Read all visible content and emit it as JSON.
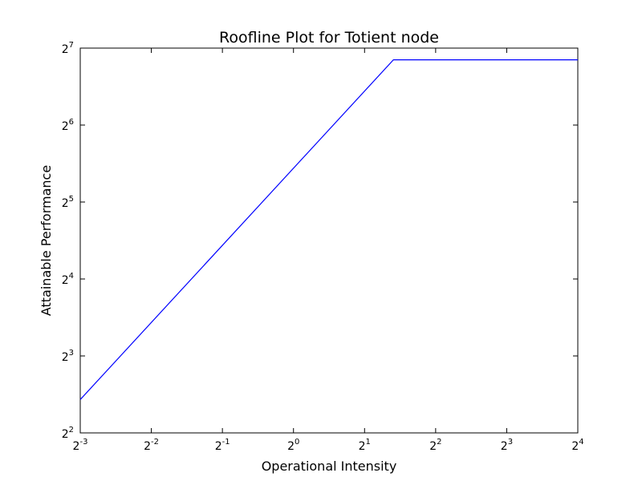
{
  "chart_data": {
    "type": "line",
    "title": "Roofline Plot for Totient node",
    "xlabel": "Operational Intensity",
    "ylabel": "Attainable Performance",
    "xscale": "log2",
    "yscale": "log2",
    "xlim": [
      0.125,
      16
    ],
    "ylim": [
      4,
      128
    ],
    "x_ticks": [
      {
        "base": "2",
        "exp": "-3",
        "value": 0.125
      },
      {
        "base": "2",
        "exp": "-2",
        "value": 0.25
      },
      {
        "base": "2",
        "exp": "-1",
        "value": 0.5
      },
      {
        "base": "2",
        "exp": "0",
        "value": 1
      },
      {
        "base": "2",
        "exp": "1",
        "value": 2
      },
      {
        "base": "2",
        "exp": "2",
        "value": 4
      },
      {
        "base": "2",
        "exp": "3",
        "value": 8
      },
      {
        "base": "2",
        "exp": "4",
        "value": 16
      }
    ],
    "y_ticks": [
      {
        "base": "2",
        "exp": "2",
        "value": 4
      },
      {
        "base": "2",
        "exp": "3",
        "value": 8
      },
      {
        "base": "2",
        "exp": "4",
        "value": 16
      },
      {
        "base": "2",
        "exp": "5",
        "value": 32
      },
      {
        "base": "2",
        "exp": "6",
        "value": 64
      },
      {
        "base": "2",
        "exp": "7",
        "value": 128
      }
    ],
    "grid": false,
    "series": [
      {
        "color": "#0000ff",
        "points": [
          {
            "x": 0.125,
            "y": 5.4
          },
          {
            "x": 2.65,
            "y": 115.2
          },
          {
            "x": 16,
            "y": 115.2
          }
        ]
      }
    ]
  }
}
